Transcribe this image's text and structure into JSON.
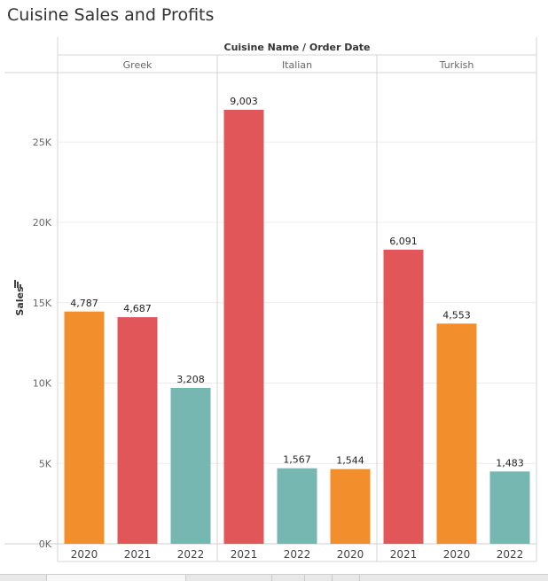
{
  "page_title": "Cuisine Sales and Profits",
  "chart_data": {
    "type": "bar",
    "title": "Cuisine Sales and Profits",
    "column_header": "Cuisine Name  /  Order Date",
    "ylabel": "Sales",
    "ylim": [
      0,
      28000
    ],
    "yticks": [
      0,
      5000,
      10000,
      15000,
      20000,
      25000
    ],
    "ytick_labels": [
      "0K",
      "5K",
      "10K",
      "15K",
      "20K",
      "25K"
    ],
    "gridlines": true,
    "legend": "none",
    "groups": [
      {
        "name": "Greek",
        "bars": [
          {
            "year": "2020",
            "value": 14450,
            "label": "4,787",
            "color": "#f28e2b"
          },
          {
            "year": "2021",
            "value": 14100,
            "label": "4,687",
            "color": "#e15759"
          },
          {
            "year": "2022",
            "value": 9700,
            "label": "3,208",
            "color": "#76b7b2"
          }
        ]
      },
      {
        "name": "Italian",
        "bars": [
          {
            "year": "2021",
            "value": 27000,
            "label": "9,003",
            "color": "#e15759"
          },
          {
            "year": "2022",
            "value": 4700,
            "label": "1,567",
            "color": "#76b7b2"
          },
          {
            "year": "2020",
            "value": 4650,
            "label": "1,544",
            "color": "#f28e2b"
          }
        ]
      },
      {
        "name": "Turkish",
        "bars": [
          {
            "year": "2021",
            "value": 18300,
            "label": "6,091",
            "color": "#e15759"
          },
          {
            "year": "2020",
            "value": 13700,
            "label": "4,553",
            "color": "#f28e2b"
          },
          {
            "year": "2022",
            "value": 4500,
            "label": "1,483",
            "color": "#76b7b2"
          }
        ]
      }
    ]
  }
}
